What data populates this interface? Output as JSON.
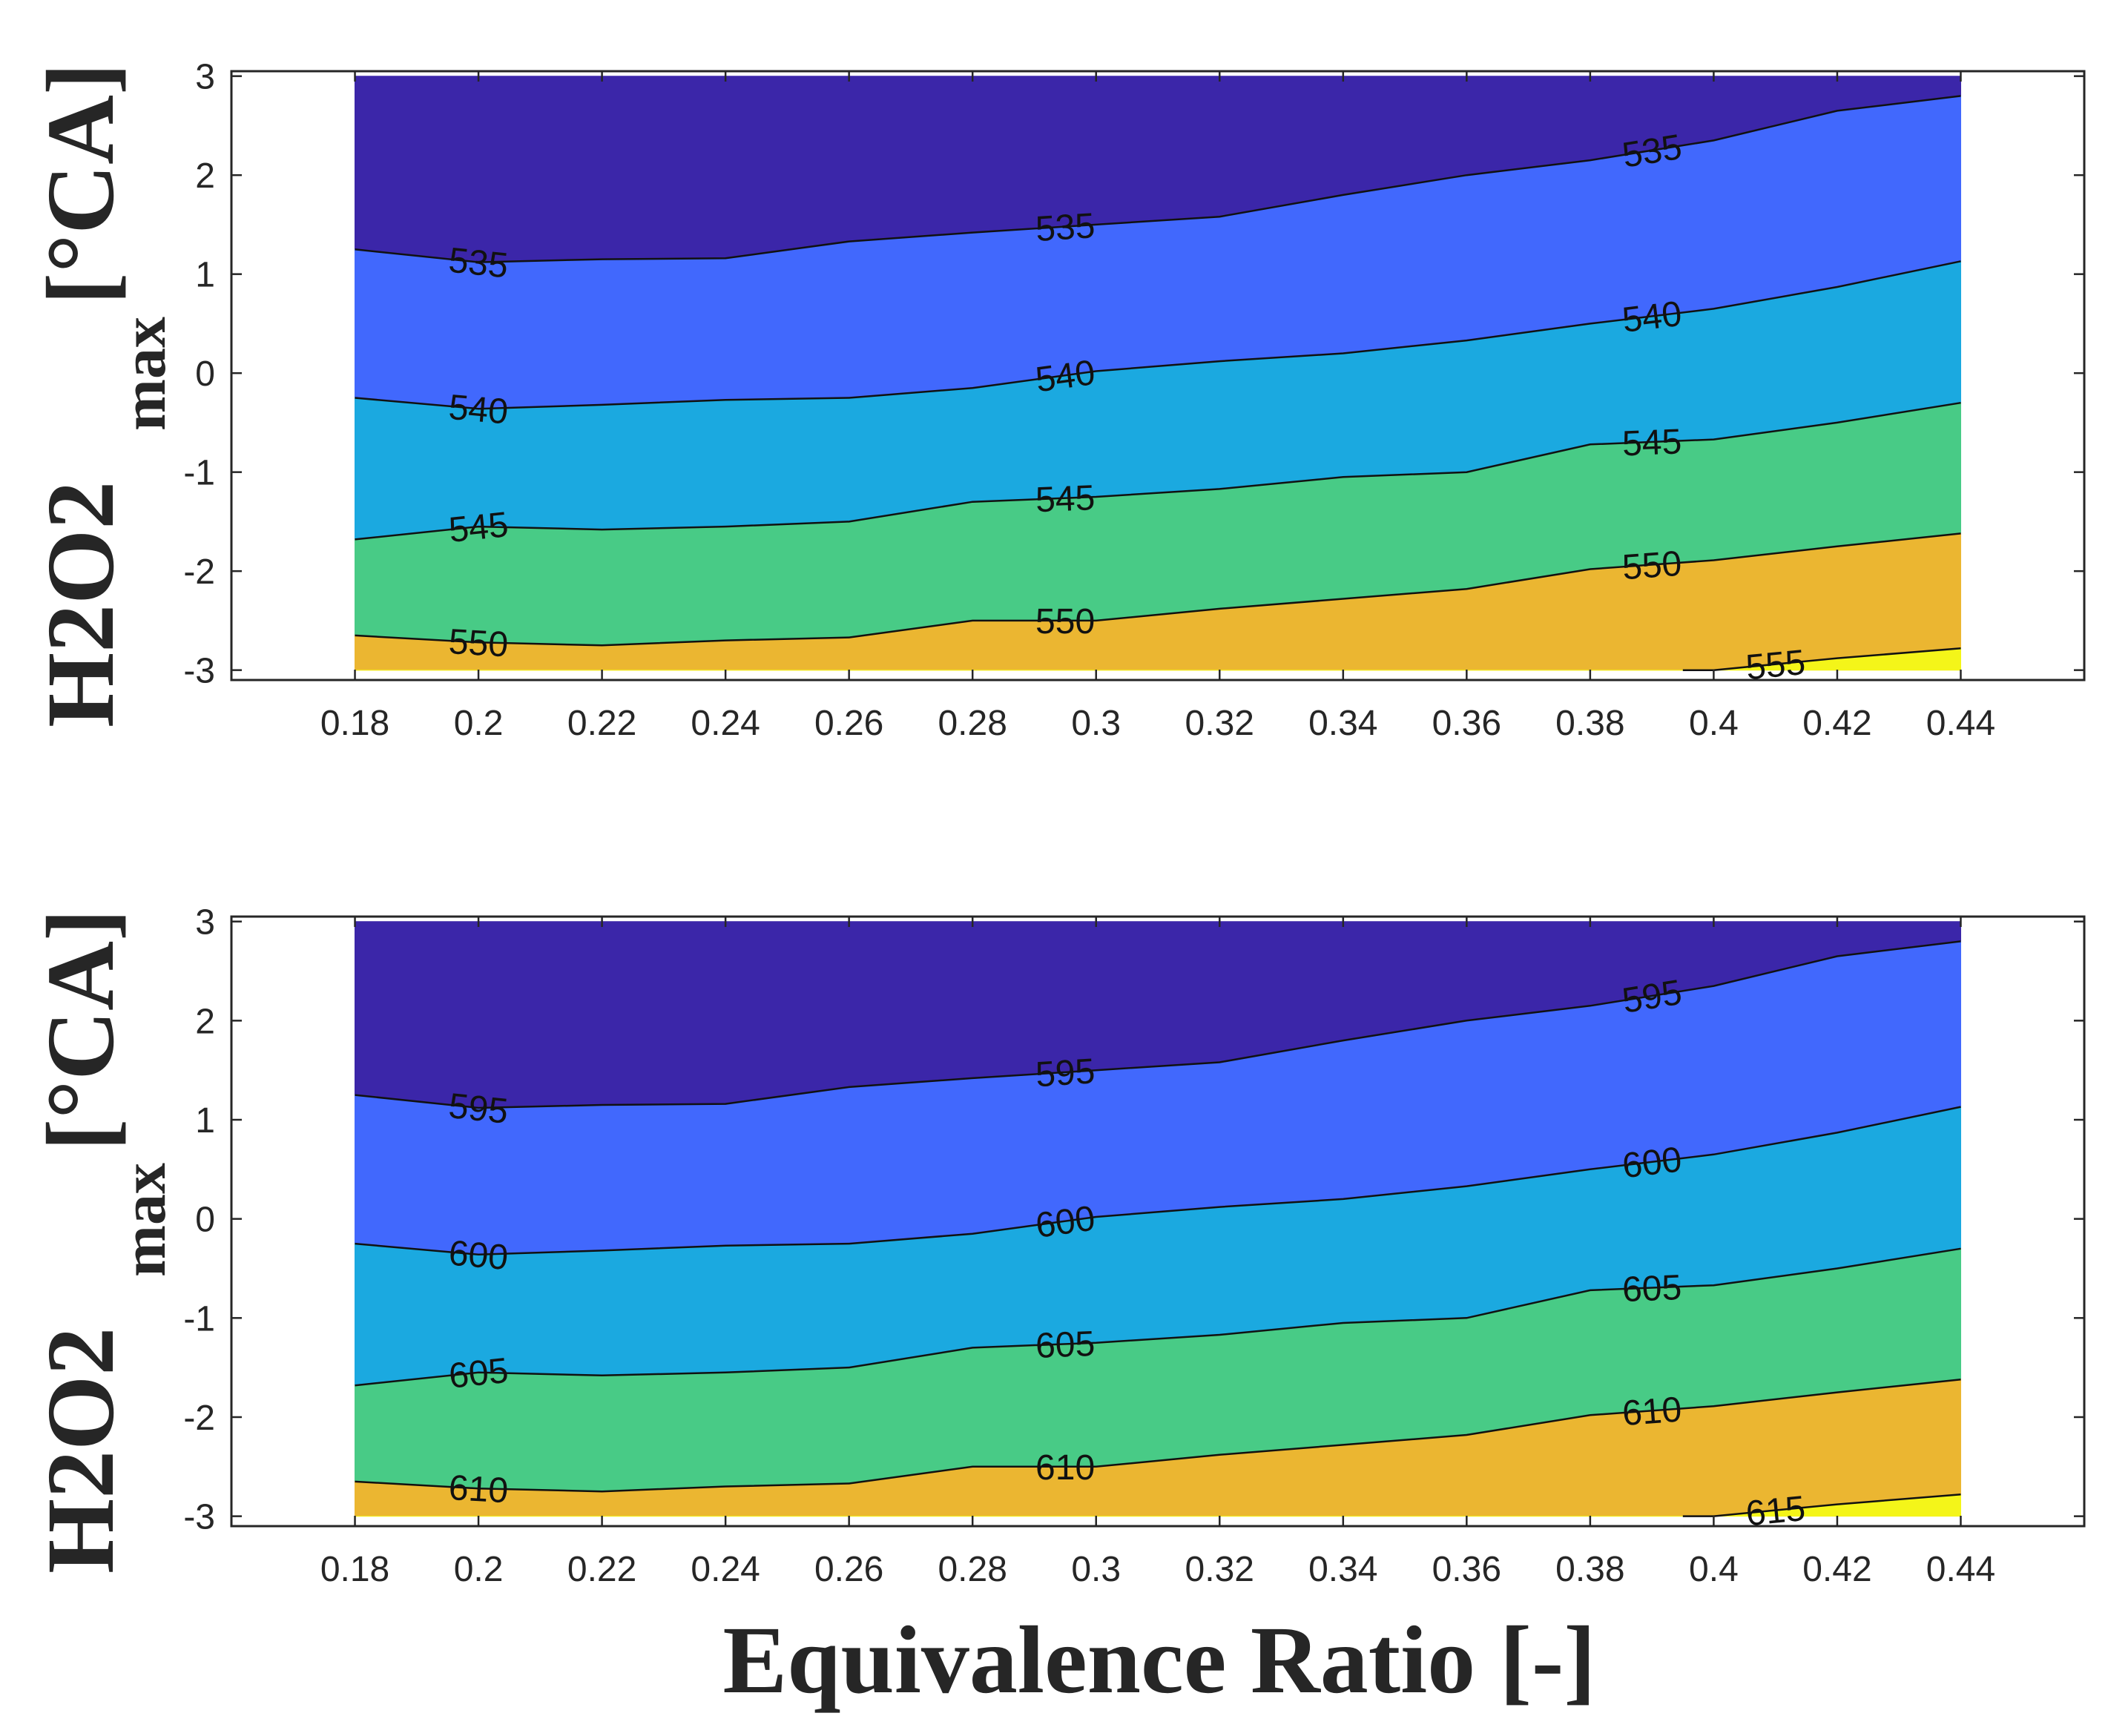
{
  "chart_data": [
    {
      "type": "contourf",
      "title": "",
      "ylabel_main": "H2O2",
      "ylabel_sub": "max",
      "ylabel_unit": "[°CA]",
      "xlabel": "",
      "x": [
        0.18,
        0.2,
        0.22,
        0.24,
        0.26,
        0.28,
        0.3,
        0.32,
        0.34,
        0.36,
        0.38,
        0.4,
        0.42,
        0.44
      ],
      "x_tick_labels": [
        "0.18",
        "0.2",
        "0.22",
        "0.24",
        "0.26",
        "0.28",
        "0.3",
        "0.32",
        "0.34",
        "0.36",
        "0.38",
        "0.4",
        "0.42",
        "0.44"
      ],
      "y_tick_labels": [
        "3",
        "2",
        "1",
        "0",
        "-1",
        "-2",
        "-3"
      ],
      "xlim": [
        0.16,
        0.46
      ],
      "ylim": [
        -3.1,
        3.05
      ],
      "y_fill_range": [
        -3,
        3
      ],
      "band_colors": [
        "#3b26a9",
        "#4168fd",
        "#1ba9e0",
        "#48cb86",
        "#ebb631",
        "#f4f519"
      ],
      "contours": [
        {
          "level": 535,
          "label": "535",
          "y": [
            1.25,
            1.12,
            1.15,
            1.16,
            1.33,
            1.42,
            1.5,
            1.58,
            1.8,
            2.0,
            2.15,
            2.35,
            2.65,
            2.8
          ],
          "labels_at": [
            0.2,
            0.295,
            0.39
          ]
        },
        {
          "level": 540,
          "label": "540",
          "y": [
            -0.25,
            -0.36,
            -0.32,
            -0.27,
            -0.25,
            -0.15,
            0.02,
            0.12,
            0.2,
            0.33,
            0.5,
            0.65,
            0.87,
            1.13
          ],
          "labels_at": [
            0.2,
            0.295,
            0.39
          ]
        },
        {
          "level": 545,
          "label": "545",
          "y": [
            -1.68,
            -1.55,
            -1.58,
            -1.55,
            -1.5,
            -1.3,
            -1.25,
            -1.17,
            -1.05,
            -1.0,
            -0.72,
            -0.67,
            -0.5,
            -0.3
          ],
          "labels_at": [
            0.2,
            0.295,
            0.39
          ]
        },
        {
          "level": 550,
          "label": "550",
          "y": [
            -2.65,
            -2.72,
            -2.75,
            -2.7,
            -2.67,
            -2.5,
            -2.5,
            -2.38,
            -2.28,
            -2.18,
            -1.98,
            -1.89,
            -1.75,
            -1.62
          ],
          "labels_at": [
            0.2,
            0.295,
            0.39
          ]
        },
        {
          "level": 555,
          "label": "555",
          "y": [
            null,
            null,
            null,
            null,
            null,
            null,
            null,
            null,
            null,
            null,
            null,
            -3.0,
            -2.88,
            -2.78
          ],
          "labels_at": [
            0.41
          ]
        }
      ]
    },
    {
      "type": "contourf",
      "title": "",
      "ylabel_main": "H2O2",
      "ylabel_sub": "max",
      "ylabel_unit": "[°CA]",
      "xlabel": "Equivalence Ratio [-]",
      "x": [
        0.18,
        0.2,
        0.22,
        0.24,
        0.26,
        0.28,
        0.3,
        0.32,
        0.34,
        0.36,
        0.38,
        0.4,
        0.42,
        0.44
      ],
      "x_tick_labels": [
        "0.18",
        "0.2",
        "0.22",
        "0.24",
        "0.26",
        "0.28",
        "0.3",
        "0.32",
        "0.34",
        "0.36",
        "0.38",
        "0.4",
        "0.42",
        "0.44"
      ],
      "y_tick_labels": [
        "3",
        "2",
        "1",
        "0",
        "-1",
        "-2",
        "-3"
      ],
      "xlim": [
        0.16,
        0.46
      ],
      "ylim": [
        -3.1,
        3.05
      ],
      "y_fill_range": [
        -3,
        3
      ],
      "band_colors": [
        "#3b26a9",
        "#4168fd",
        "#1ba9e0",
        "#48cb86",
        "#ebb631",
        "#f4f519"
      ],
      "contours": [
        {
          "level": 595,
          "label": "595",
          "y": [
            1.25,
            1.12,
            1.15,
            1.16,
            1.33,
            1.42,
            1.5,
            1.58,
            1.8,
            2.0,
            2.15,
            2.35,
            2.65,
            2.8
          ],
          "labels_at": [
            0.2,
            0.295,
            0.39
          ]
        },
        {
          "level": 600,
          "label": "600",
          "y": [
            -0.25,
            -0.36,
            -0.32,
            -0.27,
            -0.25,
            -0.15,
            0.02,
            0.12,
            0.2,
            0.33,
            0.5,
            0.65,
            0.87,
            1.13
          ],
          "labels_at": [
            0.2,
            0.295,
            0.39
          ]
        },
        {
          "level": 605,
          "label": "605",
          "y": [
            -1.68,
            -1.55,
            -1.58,
            -1.55,
            -1.5,
            -1.3,
            -1.25,
            -1.17,
            -1.05,
            -1.0,
            -0.72,
            -0.67,
            -0.5,
            -0.3
          ],
          "labels_at": [
            0.2,
            0.295,
            0.39
          ]
        },
        {
          "level": 610,
          "label": "610",
          "y": [
            -2.65,
            -2.72,
            -2.75,
            -2.7,
            -2.67,
            -2.5,
            -2.5,
            -2.38,
            -2.28,
            -2.18,
            -1.98,
            -1.89,
            -1.75,
            -1.62
          ],
          "labels_at": [
            0.2,
            0.295,
            0.39
          ]
        },
        {
          "level": 615,
          "label": "615",
          "y": [
            null,
            null,
            null,
            null,
            null,
            null,
            null,
            null,
            null,
            null,
            null,
            -3.0,
            -2.88,
            -2.78
          ],
          "labels_at": [
            0.41
          ]
        }
      ]
    }
  ]
}
